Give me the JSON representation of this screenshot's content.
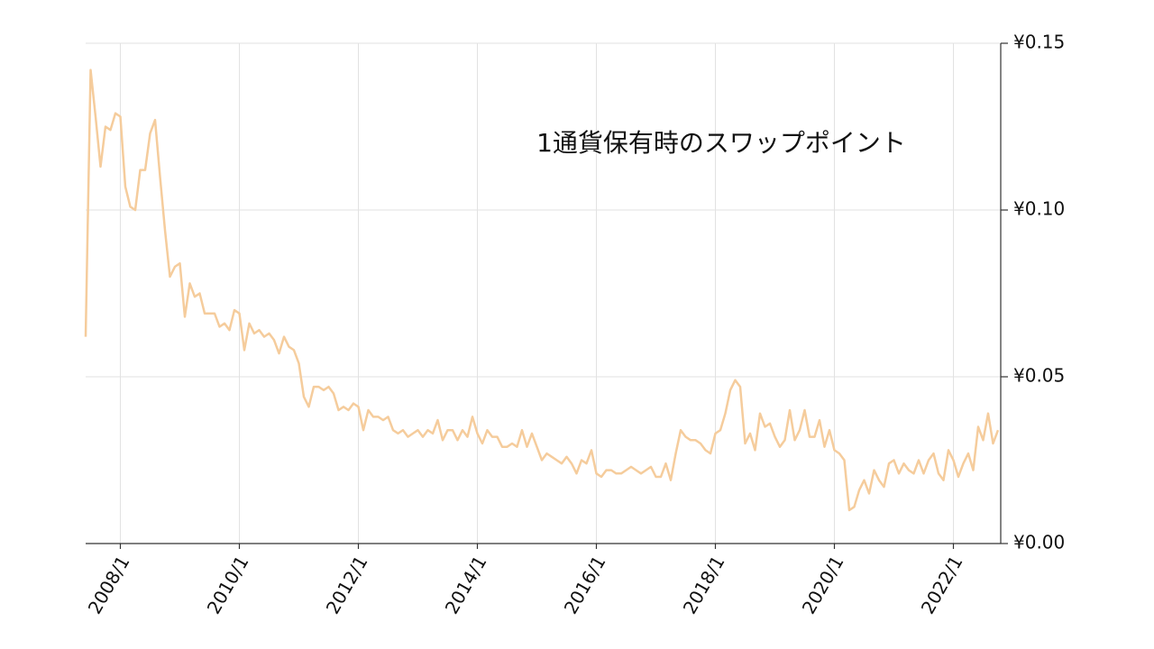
{
  "chart_data": {
    "type": "line",
    "title": "1通貨保有時のスワップポイント",
    "x": [
      "2007/6",
      "2007/7",
      "2007/8",
      "2007/9",
      "2007/10",
      "2007/11",
      "2007/12",
      "2008/1",
      "2008/2",
      "2008/3",
      "2008/4",
      "2008/5",
      "2008/6",
      "2008/7",
      "2008/8",
      "2008/9",
      "2008/10",
      "2008/11",
      "2008/12",
      "2009/1",
      "2009/2",
      "2009/3",
      "2009/4",
      "2009/5",
      "2009/6",
      "2009/7",
      "2009/8",
      "2009/9",
      "2009/10",
      "2009/11",
      "2009/12",
      "2010/1",
      "2010/2",
      "2010/3",
      "2010/4",
      "2010/5",
      "2010/6",
      "2010/7",
      "2010/8",
      "2010/9",
      "2010/10",
      "2010/11",
      "2010/12",
      "2011/1",
      "2011/2",
      "2011/3",
      "2011/4",
      "2011/5",
      "2011/6",
      "2011/7",
      "2011/8",
      "2011/9",
      "2011/10",
      "2011/11",
      "2011/12",
      "2012/1",
      "2012/2",
      "2012/3",
      "2012/4",
      "2012/5",
      "2012/6",
      "2012/7",
      "2012/8",
      "2012/9",
      "2012/10",
      "2012/11",
      "2012/12",
      "2013/1",
      "2013/2",
      "2013/3",
      "2013/4",
      "2013/5",
      "2013/6",
      "2013/7",
      "2013/8",
      "2013/9",
      "2013/10",
      "2013/11",
      "2013/12",
      "2014/1",
      "2014/2",
      "2014/3",
      "2014/4",
      "2014/5",
      "2014/6",
      "2014/7",
      "2014/8",
      "2014/9",
      "2014/10",
      "2014/11",
      "2014/12",
      "2015/1",
      "2015/2",
      "2015/3",
      "2015/4",
      "2015/5",
      "2015/6",
      "2015/7",
      "2015/8",
      "2015/9",
      "2015/10",
      "2015/11",
      "2015/12",
      "2016/1",
      "2016/2",
      "2016/3",
      "2016/4",
      "2016/5",
      "2016/6",
      "2016/7",
      "2016/8",
      "2016/9",
      "2016/10",
      "2016/11",
      "2016/12",
      "2017/1",
      "2017/2",
      "2017/3",
      "2017/4",
      "2017/5",
      "2017/6",
      "2017/7",
      "2017/8",
      "2017/9",
      "2017/10",
      "2017/11",
      "2017/12",
      "2018/1",
      "2018/2",
      "2018/3",
      "2018/4",
      "2018/5",
      "2018/6",
      "2018/7",
      "2018/8",
      "2018/9",
      "2018/10",
      "2018/11",
      "2018/12",
      "2019/1",
      "2019/2",
      "2019/3",
      "2019/4",
      "2019/5",
      "2019/6",
      "2019/7",
      "2019/8",
      "2019/9",
      "2019/10",
      "2019/11",
      "2019/12",
      "2020/1",
      "2020/2",
      "2020/3",
      "2020/4",
      "2020/5",
      "2020/6",
      "2020/7",
      "2020/8",
      "2020/9",
      "2020/10",
      "2020/11",
      "2020/12",
      "2021/1",
      "2021/2",
      "2021/3",
      "2021/4",
      "2021/5",
      "2021/6",
      "2021/7",
      "2021/8",
      "2021/9",
      "2021/10",
      "2021/11",
      "2021/12",
      "2022/1",
      "2022/2",
      "2022/3",
      "2022/4",
      "2022/5",
      "2022/6",
      "2022/7",
      "2022/8",
      "2022/9",
      "2022/10"
    ],
    "values": [
      0.062,
      0.142,
      0.128,
      0.113,
      0.125,
      0.124,
      0.129,
      0.128,
      0.107,
      0.101,
      0.1,
      0.112,
      0.112,
      0.123,
      0.127,
      0.11,
      0.094,
      0.08,
      0.083,
      0.084,
      0.068,
      0.078,
      0.074,
      0.075,
      0.069,
      0.069,
      0.069,
      0.065,
      0.066,
      0.064,
      0.07,
      0.069,
      0.058,
      0.066,
      0.063,
      0.064,
      0.062,
      0.063,
      0.061,
      0.057,
      0.062,
      0.059,
      0.058,
      0.054,
      0.044,
      0.041,
      0.047,
      0.047,
      0.046,
      0.047,
      0.045,
      0.04,
      0.041,
      0.04,
      0.042,
      0.041,
      0.034,
      0.04,
      0.038,
      0.038,
      0.037,
      0.038,
      0.034,
      0.033,
      0.034,
      0.032,
      0.033,
      0.034,
      0.032,
      0.034,
      0.033,
      0.037,
      0.031,
      0.034,
      0.034,
      0.031,
      0.034,
      0.032,
      0.038,
      0.033,
      0.03,
      0.034,
      0.032,
      0.032,
      0.029,
      0.029,
      0.03,
      0.029,
      0.034,
      0.029,
      0.033,
      0.029,
      0.025,
      0.027,
      0.026,
      0.025,
      0.024,
      0.026,
      0.024,
      0.021,
      0.025,
      0.024,
      0.028,
      0.021,
      0.02,
      0.022,
      0.022,
      0.021,
      0.021,
      0.022,
      0.023,
      0.022,
      0.021,
      0.022,
      0.023,
      0.02,
      0.02,
      0.024,
      0.019,
      0.027,
      0.034,
      0.032,
      0.031,
      0.031,
      0.03,
      0.028,
      0.027,
      0.033,
      0.034,
      0.039,
      0.046,
      0.049,
      0.047,
      0.03,
      0.033,
      0.028,
      0.039,
      0.035,
      0.036,
      0.032,
      0.029,
      0.031,
      0.04,
      0.031,
      0.034,
      0.04,
      0.032,
      0.032,
      0.037,
      0.029,
      0.034,
      0.028,
      0.027,
      0.025,
      0.01,
      0.011,
      0.016,
      0.019,
      0.015,
      0.022,
      0.019,
      0.017,
      0.024,
      0.025,
      0.021,
      0.024,
      0.022,
      0.021,
      0.025,
      0.021,
      0.025,
      0.027,
      0.021,
      0.019,
      0.028,
      0.025,
      0.02,
      0.024,
      0.027,
      0.022,
      0.035,
      0.031,
      0.039,
      0.03,
      0.034
    ],
    "color": "#f5cc9c",
    "xlim": [
      "2007/6",
      "2022/10"
    ],
    "xticks": [
      "2008/1",
      "2010/1",
      "2012/1",
      "2014/1",
      "2016/1",
      "2018/1",
      "2020/1",
      "2022/1"
    ],
    "ylim": [
      0,
      0.15
    ],
    "yticks": [
      {
        "value": 0,
        "label": "¥0.00"
      },
      {
        "value": 0.05,
        "label": "¥0.05"
      },
      {
        "value": 0.1,
        "label": "¥0.10"
      },
      {
        "value": 0.15,
        "label": "¥0.15"
      }
    ],
    "grid": true,
    "y_axis_side": "right"
  }
}
